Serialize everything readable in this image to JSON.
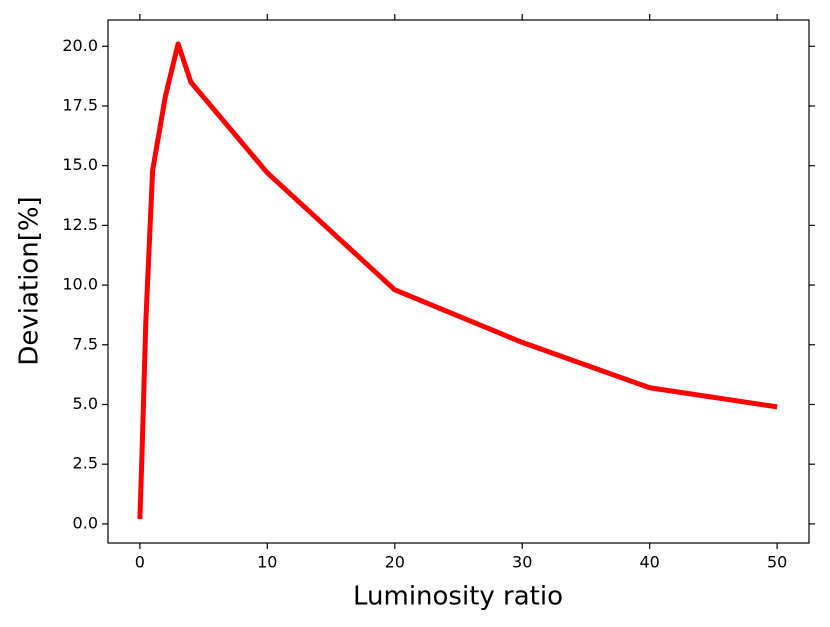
{
  "chart_data": {
    "type": "line",
    "xlabel": "Luminosity ratio",
    "ylabel": "Deviation[%]",
    "x": [
      0,
      0.16,
      0.47,
      1,
      2,
      3,
      4,
      10,
      20,
      30,
      40,
      50
    ],
    "series": [
      {
        "color": "#ff0000",
        "values": [
          0.2,
          2.8,
          8.5,
          14.8,
          17.9,
          20.1,
          18.5,
          14.7,
          9.8,
          7.6,
          5.7,
          4.9
        ]
      }
    ],
    "xlim": [
      -2.5,
      52.5
    ],
    "ylim": [
      -0.8,
      21.1
    ],
    "xticks": [
      0,
      10,
      20,
      30,
      40,
      50
    ],
    "yticks": [
      {
        "value": 0,
        "label": "0.0"
      },
      {
        "value": 2.5,
        "label": "2.5"
      },
      {
        "value": 5,
        "label": "5.0"
      },
      {
        "value": 7.5,
        "label": "7.5"
      },
      {
        "value": 10,
        "label": "10.0"
      },
      {
        "value": 12.5,
        "label": "12.5"
      },
      {
        "value": 15,
        "label": "15.0"
      },
      {
        "value": 17.5,
        "label": "17.5"
      },
      {
        "value": 20,
        "label": "20.0"
      }
    ],
    "grid": false
  }
}
